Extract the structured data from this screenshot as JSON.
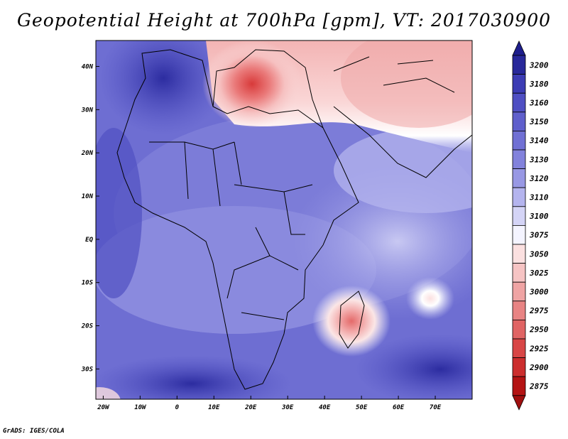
{
  "title": "Geopotential Height at 700hPa [gpm], VT: 2017030900",
  "credit": "GrADS: IGES/COLA",
  "map": {
    "lon_range": [
      -22,
      80
    ],
    "lat_range": [
      -37,
      46
    ],
    "x_ticks": [
      {
        "lon": -20,
        "label": "20W"
      },
      {
        "lon": -10,
        "label": "10W"
      },
      {
        "lon": 0,
        "label": "0"
      },
      {
        "lon": 10,
        "label": "10E"
      },
      {
        "lon": 20,
        "label": "20E"
      },
      {
        "lon": 30,
        "label": "30E"
      },
      {
        "lon": 40,
        "label": "40E"
      },
      {
        "lon": 50,
        "label": "50E"
      },
      {
        "lon": 60,
        "label": "60E"
      },
      {
        "lon": 70,
        "label": "70E"
      }
    ],
    "y_ticks": [
      {
        "lat": 40,
        "label": "40N"
      },
      {
        "lat": 30,
        "label": "30N"
      },
      {
        "lat": 20,
        "label": "20N"
      },
      {
        "lat": 10,
        "label": "10N"
      },
      {
        "lat": 0,
        "label": "EQ"
      },
      {
        "lat": -10,
        "label": "10S"
      },
      {
        "lat": -20,
        "label": "20S"
      },
      {
        "lat": -30,
        "label": "30S"
      }
    ],
    "features": [
      {
        "name": "mediterranean-low",
        "lon": 22,
        "lat": 34,
        "value": 2960
      },
      {
        "name": "madagascar-low",
        "lon": 47,
        "lat": -19,
        "value": 3025
      },
      {
        "name": "indian-ocean-low",
        "lon": 68,
        "lat": -14,
        "value": 3080
      }
    ]
  },
  "colorbar": {
    "levels": [
      "3200",
      "3180",
      "3160",
      "3150",
      "3140",
      "3130",
      "3120",
      "3110",
      "3100",
      "3075",
      "3050",
      "3025",
      "3000",
      "2975",
      "2950",
      "2925",
      "2900",
      "2875"
    ],
    "colors": [
      "#28289a",
      "#3c3cb4",
      "#4f4fc3",
      "#5f5fcc",
      "#7070d4",
      "#8282dc",
      "#9898e4",
      "#b4b4ee",
      "#d4d4f6",
      "#f4f4ff",
      "#fbe0e0",
      "#f6c4c4",
      "#efa4a4",
      "#e88484",
      "#e06464",
      "#d84646",
      "#cc2e2e",
      "#b41414"
    ],
    "top_arrow_color": "#1e1e8c",
    "bottom_arrow_color": "#a00f0f"
  }
}
